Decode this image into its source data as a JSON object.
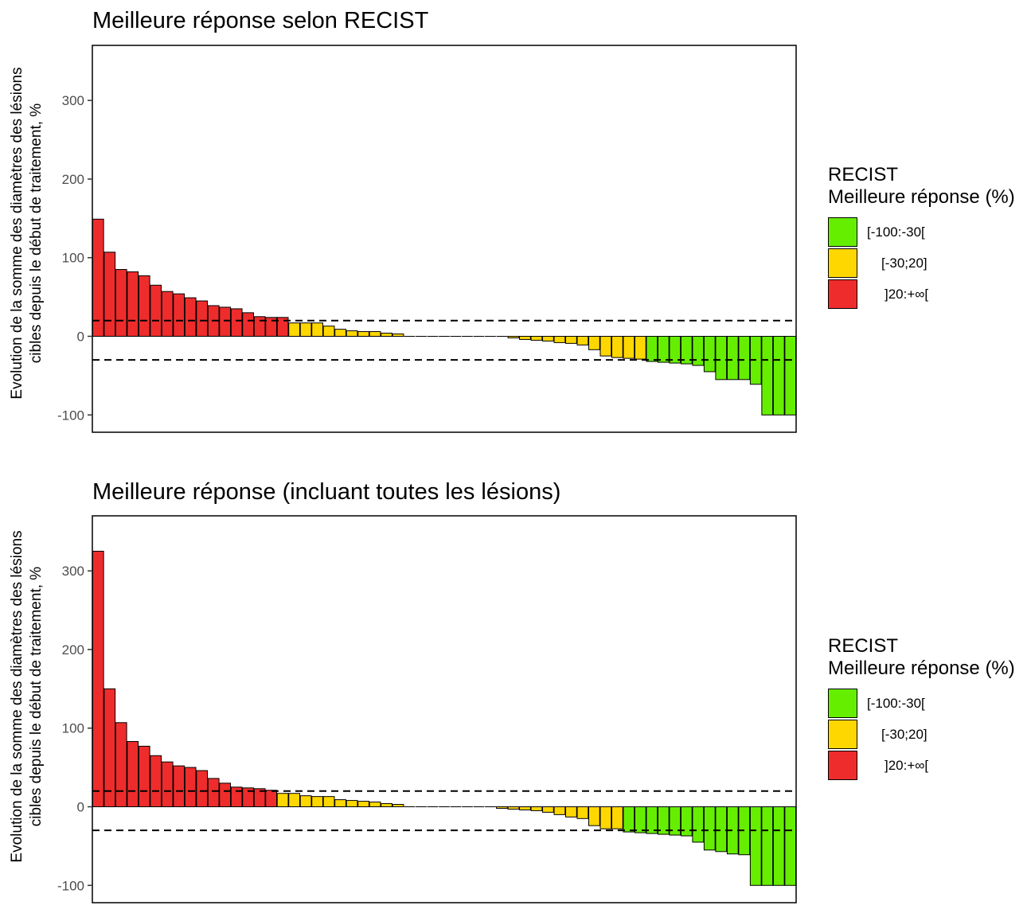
{
  "colors": {
    "green": "#66EE00",
    "yellow": "#FFD700",
    "red": "#EE2C2C"
  },
  "chart_data": [
    {
      "type": "bar",
      "title": "Meilleure réponse selon RECIST",
      "ylabel_line1": "Evolution de la somme des diamètres des lésions",
      "ylabel_line2": "cibles depuis le début de traitement, %",
      "xlabel": "",
      "ylim": [
        -122,
        370
      ],
      "yticks": [
        -100,
        0,
        100,
        200,
        300
      ],
      "ytick_labels": [
        "-100",
        "0",
        "100",
        "200",
        "300"
      ],
      "reference_lines": [
        20,
        -30
      ],
      "legend": {
        "title_line1": "RECIST",
        "title_line2": "Meilleure réponse (%)",
        "items": [
          {
            "label": "[-100:-30[",
            "color": "#66EE00"
          },
          {
            "label": "[-30;20]",
            "color": "#FFD700"
          },
          {
            "label": "]20:+∞[",
            "color": "#EE2C2C"
          }
        ]
      },
      "values": [
        149,
        107,
        85,
        82,
        77,
        65,
        57,
        54,
        49,
        45,
        39,
        37,
        35,
        30,
        25,
        24,
        24,
        17,
        17,
        17,
        13,
        9,
        7,
        6,
        6,
        4,
        3,
        0,
        0,
        0,
        0,
        0,
        0,
        0,
        0,
        0,
        -2,
        -4,
        -5,
        -6,
        -8,
        -9,
        -11,
        -17,
        -25,
        -27,
        -28,
        -29,
        -32,
        -33,
        -34,
        -35,
        -37,
        -45,
        -55,
        -55,
        -55,
        -61,
        -100,
        -100,
        -100
      ]
    },
    {
      "type": "bar",
      "title": "Meilleure réponse (incluant toutes les lésions)",
      "ylabel_line1": "Evolution de la somme des diamètres des lésions",
      "ylabel_line2": "cibles depuis le début de traitement, %",
      "xlabel": "",
      "ylim": [
        -122,
        370
      ],
      "yticks": [
        -100,
        0,
        100,
        200,
        300
      ],
      "ytick_labels": [
        "-100",
        "0",
        "100",
        "200",
        "300"
      ],
      "reference_lines": [
        20,
        -30
      ],
      "legend": {
        "title_line1": "RECIST",
        "title_line2": "Meilleure réponse (%)",
        "items": [
          {
            "label": "[-100:-30[",
            "color": "#66EE00"
          },
          {
            "label": "[-30;20]",
            "color": "#FFD700"
          },
          {
            "label": "]20:+∞[",
            "color": "#EE2C2C"
          }
        ]
      },
      "values": [
        325,
        150,
        107,
        83,
        77,
        65,
        57,
        52,
        50,
        46,
        36,
        30,
        25,
        24,
        23,
        21,
        17,
        17,
        14,
        13,
        13,
        9,
        8,
        7,
        6,
        4,
        3,
        0,
        0,
        0,
        0,
        0,
        0,
        0,
        0,
        -2,
        -3,
        -4,
        -5,
        -7,
        -10,
        -13,
        -15,
        -24,
        -28,
        -28,
        -32,
        -33,
        -34,
        -35,
        -36,
        -37,
        -45,
        -55,
        -57,
        -60,
        -61,
        -100,
        -100,
        -100,
        -100
      ]
    }
  ]
}
